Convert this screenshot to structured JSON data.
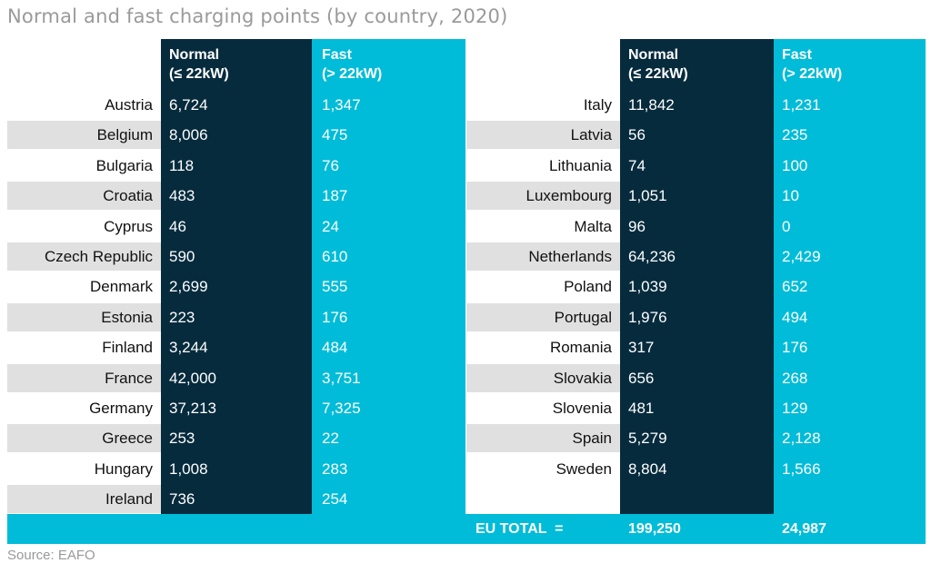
{
  "title": "Normal and fast charging points (by country, 2020)",
  "source": "Source: EAFO",
  "colors": {
    "normal": "#062b3d",
    "fast": "#00bcd8",
    "stripe": "#e0e0e0",
    "muted": "#9a9a9a"
  },
  "headers": {
    "normal_line1": "Normal",
    "normal_line2": "(≤ 22kW)",
    "fast_line1": "Fast",
    "fast_line2": "(> 22kW)"
  },
  "total": {
    "label": "EU TOTAL  =",
    "normal": "199,250",
    "fast": "24,987"
  },
  "chart_data": {
    "type": "table",
    "title": "Normal and fast charging points (by country, 2020)",
    "columns": [
      "Normal (≤ 22kW)",
      "Fast (> 22kW)"
    ],
    "left": [
      {
        "country": "Austria",
        "normal": "6,724",
        "fast": "1,347"
      },
      {
        "country": "Belgium",
        "normal": "8,006",
        "fast": "475"
      },
      {
        "country": "Bulgaria",
        "normal": "118",
        "fast": "76"
      },
      {
        "country": "Croatia",
        "normal": "483",
        "fast": "187"
      },
      {
        "country": "Cyprus",
        "normal": "46",
        "fast": "24"
      },
      {
        "country": "Czech Republic",
        "normal": "590",
        "fast": "610"
      },
      {
        "country": "Denmark",
        "normal": "2,699",
        "fast": "555"
      },
      {
        "country": "Estonia",
        "normal": "223",
        "fast": "176"
      },
      {
        "country": "Finland",
        "normal": "3,244",
        "fast": "484"
      },
      {
        "country": "France",
        "normal": "42,000",
        "fast": "3,751"
      },
      {
        "country": "Germany",
        "normal": "37,213",
        "fast": "7,325"
      },
      {
        "country": "Greece",
        "normal": "253",
        "fast": "22"
      },
      {
        "country": "Hungary",
        "normal": "1,008",
        "fast": "283"
      },
      {
        "country": "Ireland",
        "normal": "736",
        "fast": "254"
      }
    ],
    "right": [
      {
        "country": "Italy",
        "normal": "11,842",
        "fast": "1,231"
      },
      {
        "country": "Latvia",
        "normal": "56",
        "fast": "235"
      },
      {
        "country": "Lithuania",
        "normal": "74",
        "fast": "100"
      },
      {
        "country": "Luxembourg",
        "normal": "1,051",
        "fast": "10"
      },
      {
        "country": "Malta",
        "normal": "96",
        "fast": "0"
      },
      {
        "country": "Netherlands",
        "normal": "64,236",
        "fast": "2,429"
      },
      {
        "country": "Poland",
        "normal": "1,039",
        "fast": "652"
      },
      {
        "country": "Portugal",
        "normal": "1,976",
        "fast": "494"
      },
      {
        "country": "Romania",
        "normal": "317",
        "fast": "176"
      },
      {
        "country": "Slovakia",
        "normal": "656",
        "fast": "268"
      },
      {
        "country": "Slovenia",
        "normal": "481",
        "fast": "129"
      },
      {
        "country": "Spain",
        "normal": "5,279",
        "fast": "2,128"
      },
      {
        "country": "Sweden",
        "normal": "8,804",
        "fast": "1,566"
      }
    ]
  }
}
